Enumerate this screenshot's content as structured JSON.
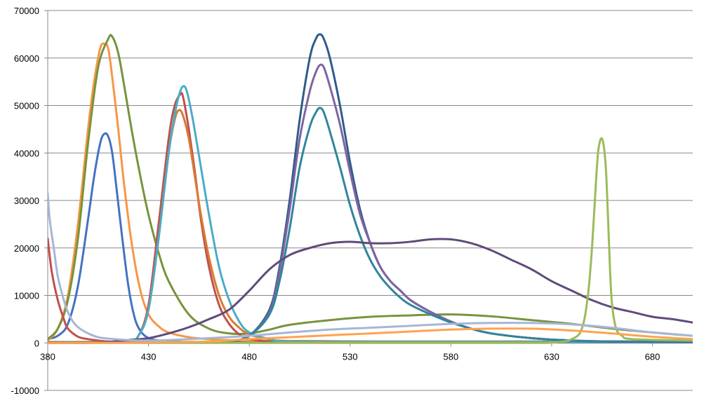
{
  "chart_data": {
    "type": "line",
    "title": "",
    "xlabel": "",
    "ylabel": "",
    "xlim": [
      380,
      700
    ],
    "ylim": [
      -10000,
      70000
    ],
    "grid": "horizontal",
    "x_ticks": [
      380,
      430,
      480,
      530,
      580,
      630,
      680
    ],
    "y_ticks": [
      -10000,
      0,
      10000,
      20000,
      30000,
      40000,
      50000,
      60000,
      70000
    ],
    "x_tick_labels": [
      "380",
      "430",
      "480",
      "530",
      "580",
      "630",
      "680"
    ],
    "y_tick_labels": [
      "-10000",
      "0",
      "10000",
      "20000",
      "30000",
      "40000",
      "50000",
      "60000",
      "70000"
    ],
    "series": [
      {
        "color": "#4472C4",
        "x": [
          380,
          385,
          390,
          395,
          400,
          403,
          406,
          408,
          410,
          412,
          414,
          417,
          420,
          423,
          426,
          430,
          435,
          440,
          450,
          470,
          500,
          550,
          600,
          650,
          700
        ],
        "y": [
          800,
          1500,
          4000,
          12000,
          26000,
          35000,
          42000,
          44000,
          43500,
          40000,
          33000,
          22000,
          12000,
          5500,
          2500,
          1000,
          500,
          300,
          200,
          150,
          100,
          100,
          100,
          100,
          100
        ]
      },
      {
        "color": "#F79646",
        "x": [
          380,
          385,
          390,
          395,
          400,
          403,
          406,
          408,
          410,
          412,
          415,
          418,
          422,
          426,
          430,
          435,
          440,
          450,
          460,
          470,
          480,
          500,
          550,
          600,
          650,
          700
        ],
        "y": [
          500,
          3000,
          10000,
          25000,
          45000,
          55000,
          62000,
          63000,
          62000,
          56000,
          45000,
          33000,
          20000,
          11000,
          6000,
          3500,
          2200,
          1200,
          800,
          600,
          500,
          400,
          300,
          300,
          300,
          300
        ]
      },
      {
        "color": "#77933C",
        "x": [
          380,
          385,
          390,
          395,
          400,
          405,
          410,
          412,
          415,
          418,
          422,
          426,
          430,
          435,
          440,
          450,
          460,
          470,
          480,
          490,
          500,
          520,
          540,
          560,
          580,
          600,
          620,
          640,
          660,
          680,
          700
        ],
        "y": [
          800,
          3000,
          9000,
          22000,
          42000,
          58000,
          64000,
          64500,
          61000,
          54000,
          44000,
          35000,
          27000,
          19000,
          13000,
          6000,
          3000,
          2000,
          2000,
          2800,
          3800,
          4800,
          5500,
          5800,
          6000,
          5600,
          4800,
          4000,
          3000,
          2200,
          1500
        ]
      },
      {
        "color": "#C0504D",
        "x": [
          380,
          382,
          385,
          388,
          390,
          395,
          400,
          405,
          410,
          420,
          425,
          430,
          435,
          440,
          443,
          446,
          447,
          448,
          450,
          453,
          456,
          460,
          465,
          470,
          475,
          480,
          490,
          500,
          550,
          600,
          650,
          700
        ],
        "y": [
          22000,
          15000,
          9000,
          5000,
          3000,
          1300,
          800,
          500,
          300,
          200,
          1500,
          8000,
          25000,
          43000,
          50000,
          52500,
          52000,
          50000,
          45000,
          36000,
          26000,
          16000,
          8000,
          4000,
          1800,
          800,
          300,
          200,
          150,
          150,
          150,
          150
        ]
      },
      {
        "color": "#D97A32",
        "x": [
          380,
          400,
          420,
          425,
          430,
          435,
          440,
          443,
          445,
          447,
          450,
          453,
          456,
          460,
          465,
          470,
          475,
          480,
          490,
          500,
          550,
          600,
          650,
          700
        ],
        "y": [
          200,
          200,
          300,
          1500,
          7000,
          22000,
          40000,
          47000,
          49000,
          48000,
          43000,
          35000,
          27000,
          18000,
          10000,
          5500,
          3200,
          1800,
          800,
          400,
          300,
          300,
          300,
          300
        ]
      },
      {
        "color": "#4BACC6",
        "x": [
          380,
          400,
          420,
          425,
          430,
          435,
          440,
          443,
          445,
          447,
          449,
          452,
          456,
          460,
          465,
          470,
          475,
          480,
          490,
          500,
          550,
          600,
          650,
          700
        ],
        "y": [
          100,
          100,
          300,
          1500,
          7000,
          22000,
          40000,
          48000,
          52000,
          54000,
          53000,
          47000,
          37000,
          27000,
          16000,
          9000,
          4500,
          2200,
          800,
          300,
          200,
          200,
          200,
          200
        ]
      },
      {
        "color": "#2E5C8A",
        "x": [
          380,
          460,
          470,
          480,
          490,
          495,
          500,
          505,
          510,
          513,
          515,
          517,
          520,
          525,
          530,
          535,
          540,
          545,
          550,
          555,
          560,
          570,
          580,
          590,
          600,
          620,
          640,
          660,
          700
        ],
        "y": [
          100,
          100,
          300,
          1500,
          7000,
          16000,
          30000,
          47000,
          60000,
          64000,
          65000,
          64000,
          60000,
          50000,
          38000,
          28000,
          21000,
          16000,
          13000,
          11000,
          9000,
          6500,
          4500,
          3000,
          2000,
          1000,
          500,
          300,
          200
        ]
      },
      {
        "color": "#8064A2",
        "x": [
          380,
          460,
          470,
          480,
          490,
          495,
          500,
          505,
          510,
          513,
          515,
          517,
          520,
          525,
          530,
          535,
          540,
          545,
          550,
          555,
          560,
          570,
          580,
          590,
          600,
          620,
          640,
          660,
          700
        ],
        "y": [
          100,
          100,
          300,
          1500,
          6500,
          15000,
          28000,
          43000,
          53000,
          57000,
          58500,
          58000,
          54000,
          46000,
          36000,
          27000,
          21000,
          16000,
          13000,
          11000,
          9000,
          6500,
          4500,
          3000,
          2000,
          1000,
          500,
          300,
          200
        ]
      },
      {
        "color": "#31859C",
        "x": [
          380,
          460,
          470,
          480,
          490,
          495,
          500,
          505,
          510,
          513,
          515,
          517,
          520,
          525,
          530,
          535,
          540,
          545,
          550,
          555,
          560,
          570,
          580,
          590,
          600,
          620,
          640,
          660,
          700
        ],
        "y": [
          100,
          100,
          300,
          1500,
          6000,
          13000,
          24000,
          37000,
          45500,
          48500,
          49500,
          48500,
          44500,
          37000,
          29000,
          22500,
          17500,
          14000,
          11500,
          9500,
          8000,
          6000,
          4300,
          3000,
          2000,
          1000,
          500,
          300,
          200
        ]
      },
      {
        "color": "#604A7B",
        "x": [
          380,
          390,
          400,
          410,
          420,
          430,
          440,
          450,
          460,
          470,
          480,
          490,
          500,
          510,
          520,
          530,
          540,
          550,
          560,
          570,
          580,
          590,
          600,
          610,
          620,
          630,
          640,
          650,
          660,
          670,
          680,
          690,
          700
        ],
        "y": [
          0,
          0,
          0,
          200,
          600,
          1000,
          2000,
          3300,
          5000,
          7000,
          11000,
          15500,
          18500,
          20000,
          21000,
          21300,
          21000,
          21000,
          21300,
          21800,
          21800,
          21000,
          19500,
          17500,
          15500,
          13000,
          11000,
          9000,
          7500,
          6500,
          5500,
          5000,
          4300
        ]
      },
      {
        "color": "#9BBB59",
        "x": [
          380,
          600,
          630,
          640,
          645,
          648,
          650,
          652,
          653,
          654,
          655,
          656,
          657,
          658,
          659,
          660,
          662,
          665,
          670,
          700
        ],
        "y": [
          0,
          0,
          100,
          800,
          3000,
          10000,
          20000,
          34000,
          40000,
          42500,
          43000,
          41000,
          36000,
          26000,
          15000,
          8000,
          3000,
          1500,
          800,
          500
        ]
      },
      {
        "color": "#FFA251",
        "x": [
          380,
          400,
          430,
          460,
          480,
          500,
          520,
          540,
          560,
          580,
          600,
          620,
          640,
          660,
          680,
          700
        ],
        "y": [
          0,
          0,
          100,
          300,
          800,
          1200,
          1600,
          2000,
          2400,
          2800,
          3000,
          3000,
          2600,
          2000,
          1300,
          800
        ]
      },
      {
        "color": "#A6B6D6",
        "x": [
          380,
          381,
          383,
          385,
          388,
          390,
          393,
          396,
          400,
          405,
          410,
          420,
          430,
          440,
          460,
          480,
          500,
          520,
          540,
          560,
          580,
          600,
          620,
          640,
          660,
          680,
          700
        ],
        "y": [
          31500,
          26000,
          20000,
          14000,
          9000,
          6500,
          4200,
          3000,
          2000,
          1200,
          900,
          600,
          500,
          600,
          1000,
          1500,
          2200,
          2800,
          3200,
          3600,
          4000,
          4200,
          4200,
          3900,
          3200,
          2200,
          1500
        ]
      }
    ]
  }
}
